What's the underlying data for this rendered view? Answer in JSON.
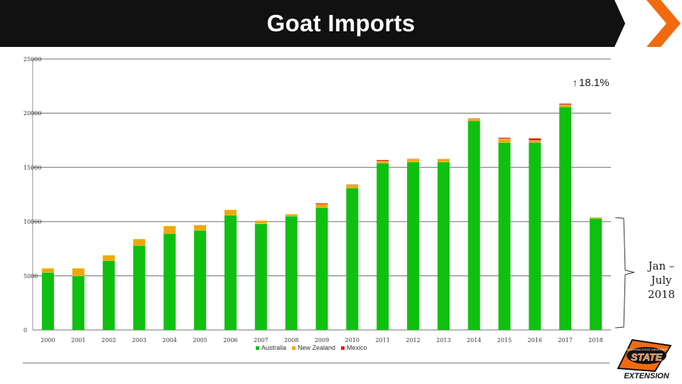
{
  "title": "Goat Imports",
  "annotation": "Jan –\nJuly\n2018",
  "growth_label": "18.1%",
  "logo_text": {
    "top": "OKLAHOMA STATE UNIVERSITY",
    "main": "STATE",
    "sub": "EXTENSION"
  },
  "colors": {
    "banner": "#111111",
    "accent": "#f26a10",
    "australia": "#10c010",
    "new_zealand": "#f0a800",
    "mexico": "#d42020",
    "grid": "#8c8c8c"
  },
  "chart_data": {
    "type": "bar",
    "stacked": true,
    "title": "Goat Imports",
    "xlabel": "",
    "ylabel": "",
    "ylim": [
      0,
      25000
    ],
    "yticks": [
      0,
      5000,
      10000,
      15000,
      20000,
      25000
    ],
    "grid": true,
    "legend_position": "bottom",
    "categories": [
      "2000",
      "2001",
      "2002",
      "2003",
      "2004",
      "2005",
      "2006",
      "2007",
      "2008",
      "2009",
      "2010",
      "2011",
      "2012",
      "2013",
      "2014",
      "2015",
      "2016",
      "2017",
      "2018"
    ],
    "series": [
      {
        "name": "Australia",
        "color": "#10c010",
        "values": [
          5300,
          5000,
          6400,
          7800,
          8900,
          9200,
          10600,
          9800,
          10500,
          11300,
          13100,
          15400,
          15500,
          15500,
          19300,
          17300,
          17300,
          20600,
          10300
        ]
      },
      {
        "name": "New Zealand",
        "color": "#f0a800",
        "values": [
          400,
          700,
          500,
          600,
          700,
          500,
          500,
          300,
          200,
          300,
          300,
          200,
          250,
          300,
          200,
          350,
          200,
          200,
          100
        ]
      },
      {
        "name": "Mexico",
        "color": "#d42020",
        "values": [
          0,
          0,
          0,
          0,
          0,
          0,
          0,
          0,
          0,
          100,
          50,
          100,
          50,
          0,
          50,
          100,
          200,
          100,
          0
        ]
      }
    ]
  }
}
